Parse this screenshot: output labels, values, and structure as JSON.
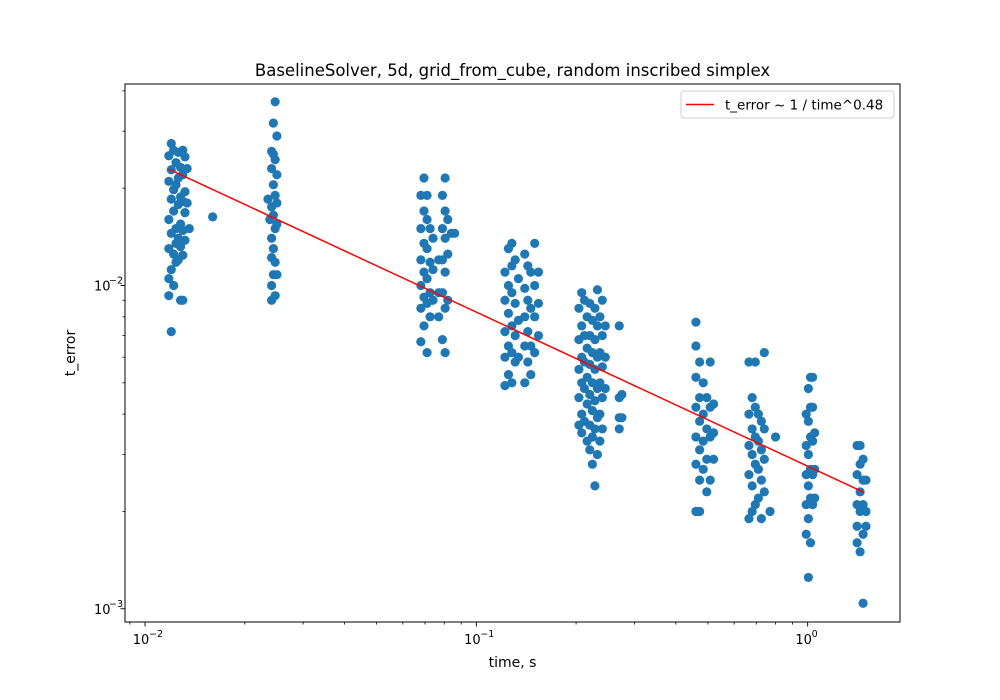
{
  "chart_data": {
    "type": "scatter",
    "title": "BaselineSolver, 5d, grid_from_cube, random inscribed simplex",
    "xlabel": "time, s",
    "ylabel": "t_error",
    "xscale": "log",
    "yscale": "log",
    "xlim": [
      0.0087,
      1.9
    ],
    "ylim": [
      0.00091,
      0.042
    ],
    "grid": false,
    "legend": {
      "placement": "upper right",
      "entries": [
        "t_error ~ 1 / time^0.48"
      ]
    },
    "x_ticks": [
      {
        "value": 0.01,
        "base": "10",
        "exp": "−2"
      },
      {
        "value": 0.1,
        "base": "10",
        "exp": "−1"
      },
      {
        "value": 1,
        "base": "10",
        "exp": "0"
      }
    ],
    "y_ticks": [
      {
        "value": 0.001,
        "base": "10",
        "exp": "−3"
      },
      {
        "value": 0.01,
        "base": "10",
        "exp": "−2"
      }
    ],
    "scatter_color": "#1f77b4",
    "fit_color": "#ff0000",
    "fit": {
      "label": "t_error ~ 1 / time^0.48",
      "x": [
        0.0118,
        1.48
      ],
      "y": [
        0.0229,
        0.00229
      ]
    },
    "points": [
      {
        "x": 0.0118,
        "y": 0.0252
      },
      {
        "x": 0.0118,
        "y": 0.021
      },
      {
        "x": 0.0118,
        "y": 0.016
      },
      {
        "x": 0.0118,
        "y": 0.013
      },
      {
        "x": 0.0118,
        "y": 0.0105
      },
      {
        "x": 0.0118,
        "y": 0.0093
      },
      {
        "x": 0.012,
        "y": 0.0275
      },
      {
        "x": 0.012,
        "y": 0.0228
      },
      {
        "x": 0.012,
        "y": 0.0185
      },
      {
        "x": 0.012,
        "y": 0.0145
      },
      {
        "x": 0.012,
        "y": 0.0112
      },
      {
        "x": 0.012,
        "y": 0.0072
      },
      {
        "x": 0.0122,
        "y": 0.0262
      },
      {
        "x": 0.0122,
        "y": 0.0198
      },
      {
        "x": 0.0122,
        "y": 0.017
      },
      {
        "x": 0.0122,
        "y": 0.0125
      },
      {
        "x": 0.0122,
        "y": 0.01
      },
      {
        "x": 0.0124,
        "y": 0.024
      },
      {
        "x": 0.0124,
        "y": 0.0205
      },
      {
        "x": 0.0124,
        "y": 0.015
      },
      {
        "x": 0.0124,
        "y": 0.0135
      },
      {
        "x": 0.0124,
        "y": 0.0118
      },
      {
        "x": 0.0126,
        "y": 0.0258
      },
      {
        "x": 0.0126,
        "y": 0.0215
      },
      {
        "x": 0.0126,
        "y": 0.0178
      },
      {
        "x": 0.0126,
        "y": 0.014
      },
      {
        "x": 0.0126,
        "y": 0.012
      },
      {
        "x": 0.0128,
        "y": 0.0232
      },
      {
        "x": 0.0128,
        "y": 0.0188
      },
      {
        "x": 0.0128,
        "y": 0.0155
      },
      {
        "x": 0.0128,
        "y": 0.0132
      },
      {
        "x": 0.0128,
        "y": 0.009
      },
      {
        "x": 0.013,
        "y": 0.0262
      },
      {
        "x": 0.013,
        "y": 0.022
      },
      {
        "x": 0.013,
        "y": 0.0182
      },
      {
        "x": 0.013,
        "y": 0.0148
      },
      {
        "x": 0.013,
        "y": 0.0124
      },
      {
        "x": 0.013,
        "y": 0.009
      },
      {
        "x": 0.0132,
        "y": 0.025
      },
      {
        "x": 0.0132,
        "y": 0.0195
      },
      {
        "x": 0.0132,
        "y": 0.0168
      },
      {
        "x": 0.0132,
        "y": 0.0138
      },
      {
        "x": 0.0134,
        "y": 0.023
      },
      {
        "x": 0.0134,
        "y": 0.018
      },
      {
        "x": 0.0136,
        "y": 0.015
      },
      {
        "x": 0.016,
        "y": 0.0163
      },
      {
        "x": 0.0235,
        "y": 0.0185
      },
      {
        "x": 0.0238,
        "y": 0.016
      },
      {
        "x": 0.0241,
        "y": 0.026
      },
      {
        "x": 0.0241,
        "y": 0.023
      },
      {
        "x": 0.0241,
        "y": 0.0175
      },
      {
        "x": 0.0241,
        "y": 0.014
      },
      {
        "x": 0.0241,
        "y": 0.0122
      },
      {
        "x": 0.0241,
        "y": 0.01
      },
      {
        "x": 0.0241,
        "y": 0.009
      },
      {
        "x": 0.0244,
        "y": 0.0318
      },
      {
        "x": 0.0244,
        "y": 0.0255
      },
      {
        "x": 0.0244,
        "y": 0.0205
      },
      {
        "x": 0.0244,
        "y": 0.0165
      },
      {
        "x": 0.0244,
        "y": 0.013
      },
      {
        "x": 0.0244,
        "y": 0.0108
      },
      {
        "x": 0.0247,
        "y": 0.037
      },
      {
        "x": 0.0247,
        "y": 0.0245
      },
      {
        "x": 0.0247,
        "y": 0.019
      },
      {
        "x": 0.0247,
        "y": 0.015
      },
      {
        "x": 0.0247,
        "y": 0.0118
      },
      {
        "x": 0.0247,
        "y": 0.0093
      },
      {
        "x": 0.025,
        "y": 0.029
      },
      {
        "x": 0.025,
        "y": 0.022
      },
      {
        "x": 0.025,
        "y": 0.018
      },
      {
        "x": 0.025,
        "y": 0.0155
      },
      {
        "x": 0.025,
        "y": 0.0108
      },
      {
        "x": 0.068,
        "y": 0.019
      },
      {
        "x": 0.068,
        "y": 0.015
      },
      {
        "x": 0.068,
        "y": 0.012
      },
      {
        "x": 0.068,
        "y": 0.01
      },
      {
        "x": 0.068,
        "y": 0.0085
      },
      {
        "x": 0.068,
        "y": 0.0067
      },
      {
        "x": 0.0695,
        "y": 0.0215
      },
      {
        "x": 0.0695,
        "y": 0.017
      },
      {
        "x": 0.0695,
        "y": 0.0135
      },
      {
        "x": 0.0695,
        "y": 0.011
      },
      {
        "x": 0.0695,
        "y": 0.0092
      },
      {
        "x": 0.0695,
        "y": 0.0075
      },
      {
        "x": 0.071,
        "y": 0.019
      },
      {
        "x": 0.071,
        "y": 0.016
      },
      {
        "x": 0.071,
        "y": 0.013
      },
      {
        "x": 0.071,
        "y": 0.0105
      },
      {
        "x": 0.071,
        "y": 0.0088
      },
      {
        "x": 0.071,
        "y": 0.0062
      },
      {
        "x": 0.0725,
        "y": 0.015
      },
      {
        "x": 0.0725,
        "y": 0.0118
      },
      {
        "x": 0.0725,
        "y": 0.0095
      },
      {
        "x": 0.0725,
        "y": 0.008
      },
      {
        "x": 0.074,
        "y": 0.014
      },
      {
        "x": 0.074,
        "y": 0.0112
      },
      {
        "x": 0.074,
        "y": 0.009
      },
      {
        "x": 0.077,
        "y": 0.012
      },
      {
        "x": 0.077,
        "y": 0.0095
      },
      {
        "x": 0.077,
        "y": 0.008
      },
      {
        "x": 0.079,
        "y": 0.019
      },
      {
        "x": 0.079,
        "y": 0.015
      },
      {
        "x": 0.079,
        "y": 0.012
      },
      {
        "x": 0.079,
        "y": 0.0095
      },
      {
        "x": 0.079,
        "y": 0.0068
      },
      {
        "x": 0.0805,
        "y": 0.0215
      },
      {
        "x": 0.0805,
        "y": 0.017
      },
      {
        "x": 0.0805,
        "y": 0.014
      },
      {
        "x": 0.0805,
        "y": 0.011
      },
      {
        "x": 0.0805,
        "y": 0.0085
      },
      {
        "x": 0.0805,
        "y": 0.0062
      },
      {
        "x": 0.082,
        "y": 0.016
      },
      {
        "x": 0.082,
        "y": 0.0125
      },
      {
        "x": 0.082,
        "y": 0.009
      },
      {
        "x": 0.084,
        "y": 0.0145
      },
      {
        "x": 0.086,
        "y": 0.0145
      },
      {
        "x": 0.122,
        "y": 0.011
      },
      {
        "x": 0.122,
        "y": 0.009
      },
      {
        "x": 0.122,
        "y": 0.0072
      },
      {
        "x": 0.122,
        "y": 0.006
      },
      {
        "x": 0.122,
        "y": 0.0049
      },
      {
        "x": 0.125,
        "y": 0.013
      },
      {
        "x": 0.125,
        "y": 0.01
      },
      {
        "x": 0.125,
        "y": 0.0082
      },
      {
        "x": 0.125,
        "y": 0.0065
      },
      {
        "x": 0.125,
        "y": 0.0053
      },
      {
        "x": 0.128,
        "y": 0.0135
      },
      {
        "x": 0.128,
        "y": 0.0115
      },
      {
        "x": 0.128,
        "y": 0.0095
      },
      {
        "x": 0.128,
        "y": 0.0075
      },
      {
        "x": 0.128,
        "y": 0.0062
      },
      {
        "x": 0.128,
        "y": 0.005
      },
      {
        "x": 0.131,
        "y": 0.012
      },
      {
        "x": 0.131,
        "y": 0.0088
      },
      {
        "x": 0.131,
        "y": 0.007
      },
      {
        "x": 0.131,
        "y": 0.0058
      },
      {
        "x": 0.134,
        "y": 0.0105
      },
      {
        "x": 0.134,
        "y": 0.0078
      },
      {
        "x": 0.134,
        "y": 0.006
      },
      {
        "x": 0.14,
        "y": 0.0125
      },
      {
        "x": 0.14,
        "y": 0.0098
      },
      {
        "x": 0.14,
        "y": 0.008
      },
      {
        "x": 0.14,
        "y": 0.0065
      },
      {
        "x": 0.14,
        "y": 0.005
      },
      {
        "x": 0.143,
        "y": 0.0115
      },
      {
        "x": 0.143,
        "y": 0.009
      },
      {
        "x": 0.143,
        "y": 0.0072
      },
      {
        "x": 0.143,
        "y": 0.0058
      },
      {
        "x": 0.146,
        "y": 0.011
      },
      {
        "x": 0.146,
        "y": 0.0085
      },
      {
        "x": 0.146,
        "y": 0.0065
      },
      {
        "x": 0.146,
        "y": 0.0053
      },
      {
        "x": 0.15,
        "y": 0.0135
      },
      {
        "x": 0.15,
        "y": 0.01
      },
      {
        "x": 0.15,
        "y": 0.008
      },
      {
        "x": 0.15,
        "y": 0.0062
      },
      {
        "x": 0.154,
        "y": 0.011
      },
      {
        "x": 0.154,
        "y": 0.0088
      },
      {
        "x": 0.154,
        "y": 0.007
      },
      {
        "x": 0.204,
        "y": 0.0085
      },
      {
        "x": 0.204,
        "y": 0.0068
      },
      {
        "x": 0.204,
        "y": 0.0055
      },
      {
        "x": 0.204,
        "y": 0.0045
      },
      {
        "x": 0.204,
        "y": 0.0037
      },
      {
        "x": 0.208,
        "y": 0.0095
      },
      {
        "x": 0.208,
        "y": 0.0075
      },
      {
        "x": 0.208,
        "y": 0.006
      },
      {
        "x": 0.208,
        "y": 0.005
      },
      {
        "x": 0.208,
        "y": 0.004
      },
      {
        "x": 0.208,
        "y": 0.0035
      },
      {
        "x": 0.212,
        "y": 0.009
      },
      {
        "x": 0.212,
        "y": 0.007
      },
      {
        "x": 0.212,
        "y": 0.0058
      },
      {
        "x": 0.212,
        "y": 0.0048
      },
      {
        "x": 0.212,
        "y": 0.0038
      },
      {
        "x": 0.216,
        "y": 0.008
      },
      {
        "x": 0.216,
        "y": 0.0064
      },
      {
        "x": 0.216,
        "y": 0.0052
      },
      {
        "x": 0.216,
        "y": 0.0043
      },
      {
        "x": 0.216,
        "y": 0.0033
      },
      {
        "x": 0.22,
        "y": 0.0088
      },
      {
        "x": 0.22,
        "y": 0.007
      },
      {
        "x": 0.22,
        "y": 0.0057
      },
      {
        "x": 0.22,
        "y": 0.0046
      },
      {
        "x": 0.22,
        "y": 0.0037
      },
      {
        "x": 0.22,
        "y": 0.0031
      },
      {
        "x": 0.224,
        "y": 0.0078
      },
      {
        "x": 0.224,
        "y": 0.0062
      },
      {
        "x": 0.224,
        "y": 0.005
      },
      {
        "x": 0.224,
        "y": 0.0041
      },
      {
        "x": 0.224,
        "y": 0.0034
      },
      {
        "x": 0.224,
        "y": 0.0028
      },
      {
        "x": 0.228,
        "y": 0.0085
      },
      {
        "x": 0.228,
        "y": 0.0068
      },
      {
        "x": 0.228,
        "y": 0.0055
      },
      {
        "x": 0.228,
        "y": 0.0044
      },
      {
        "x": 0.228,
        "y": 0.0036
      },
      {
        "x": 0.228,
        "y": 0.0024
      },
      {
        "x": 0.232,
        "y": 0.0097
      },
      {
        "x": 0.232,
        "y": 0.0075
      },
      {
        "x": 0.232,
        "y": 0.006
      },
      {
        "x": 0.232,
        "y": 0.0048
      },
      {
        "x": 0.232,
        "y": 0.0039
      },
      {
        "x": 0.232,
        "y": 0.003
      },
      {
        "x": 0.236,
        "y": 0.008
      },
      {
        "x": 0.236,
        "y": 0.0062
      },
      {
        "x": 0.236,
        "y": 0.005
      },
      {
        "x": 0.236,
        "y": 0.004
      },
      {
        "x": 0.236,
        "y": 0.0033
      },
      {
        "x": 0.24,
        "y": 0.009
      },
      {
        "x": 0.24,
        "y": 0.007
      },
      {
        "x": 0.24,
        "y": 0.0056
      },
      {
        "x": 0.24,
        "y": 0.0045
      },
      {
        "x": 0.24,
        "y": 0.0036
      },
      {
        "x": 0.245,
        "y": 0.0075
      },
      {
        "x": 0.245,
        "y": 0.006
      },
      {
        "x": 0.245,
        "y": 0.0048
      },
      {
        "x": 0.27,
        "y": 0.0075
      },
      {
        "x": 0.27,
        "y": 0.0045
      },
      {
        "x": 0.27,
        "y": 0.0039
      },
      {
        "x": 0.27,
        "y": 0.0036
      },
      {
        "x": 0.275,
        "y": 0.0039
      },
      {
        "x": 0.275,
        "y": 0.0046
      },
      {
        "x": 0.46,
        "y": 0.0077
      },
      {
        "x": 0.46,
        "y": 0.0065
      },
      {
        "x": 0.46,
        "y": 0.0052
      },
      {
        "x": 0.46,
        "y": 0.0042
      },
      {
        "x": 0.46,
        "y": 0.0034
      },
      {
        "x": 0.46,
        "y": 0.0028
      },
      {
        "x": 0.46,
        "y": 0.002
      },
      {
        "x": 0.472,
        "y": 0.0058
      },
      {
        "x": 0.472,
        "y": 0.0045
      },
      {
        "x": 0.472,
        "y": 0.0038
      },
      {
        "x": 0.472,
        "y": 0.0031
      },
      {
        "x": 0.472,
        "y": 0.0025
      },
      {
        "x": 0.472,
        "y": 0.002
      },
      {
        "x": 0.484,
        "y": 0.005
      },
      {
        "x": 0.484,
        "y": 0.004
      },
      {
        "x": 0.484,
        "y": 0.0033
      },
      {
        "x": 0.484,
        "y": 0.0027
      },
      {
        "x": 0.496,
        "y": 0.0045
      },
      {
        "x": 0.496,
        "y": 0.0036
      },
      {
        "x": 0.496,
        "y": 0.0029
      },
      {
        "x": 0.496,
        "y": 0.0023
      },
      {
        "x": 0.508,
        "y": 0.0058
      },
      {
        "x": 0.508,
        "y": 0.0042
      },
      {
        "x": 0.508,
        "y": 0.0034
      },
      {
        "x": 0.508,
        "y": 0.0025
      },
      {
        "x": 0.52,
        "y": 0.0043
      },
      {
        "x": 0.52,
        "y": 0.0035
      },
      {
        "x": 0.52,
        "y": 0.0029
      },
      {
        "x": 0.665,
        "y": 0.0058
      },
      {
        "x": 0.665,
        "y": 0.004
      },
      {
        "x": 0.665,
        "y": 0.0032
      },
      {
        "x": 0.665,
        "y": 0.0026
      },
      {
        "x": 0.665,
        "y": 0.0019
      },
      {
        "x": 0.68,
        "y": 0.0045
      },
      {
        "x": 0.68,
        "y": 0.0036
      },
      {
        "x": 0.68,
        "y": 0.003
      },
      {
        "x": 0.68,
        "y": 0.0024
      },
      {
        "x": 0.68,
        "y": 0.002
      },
      {
        "x": 0.695,
        "y": 0.0058
      },
      {
        "x": 0.695,
        "y": 0.0042
      },
      {
        "x": 0.695,
        "y": 0.0034
      },
      {
        "x": 0.695,
        "y": 0.0028
      },
      {
        "x": 0.695,
        "y": 0.0021
      },
      {
        "x": 0.71,
        "y": 0.004
      },
      {
        "x": 0.71,
        "y": 0.0033
      },
      {
        "x": 0.71,
        "y": 0.0027
      },
      {
        "x": 0.71,
        "y": 0.0022
      },
      {
        "x": 0.725,
        "y": 0.0038
      },
      {
        "x": 0.725,
        "y": 0.0031
      },
      {
        "x": 0.725,
        "y": 0.0025
      },
      {
        "x": 0.725,
        "y": 0.0019
      },
      {
        "x": 0.74,
        "y": 0.0062
      },
      {
        "x": 0.74,
        "y": 0.0036
      },
      {
        "x": 0.74,
        "y": 0.0029
      },
      {
        "x": 0.74,
        "y": 0.0023
      },
      {
        "x": 0.77,
        "y": 0.002
      },
      {
        "x": 0.8,
        "y": 0.0034
      },
      {
        "x": 0.99,
        "y": 0.004
      },
      {
        "x": 0.99,
        "y": 0.0032
      },
      {
        "x": 0.99,
        "y": 0.0026
      },
      {
        "x": 0.99,
        "y": 0.0021
      },
      {
        "x": 0.99,
        "y": 0.0017
      },
      {
        "x": 1.005,
        "y": 0.0048
      },
      {
        "x": 1.005,
        "y": 0.0038
      },
      {
        "x": 1.005,
        "y": 0.003
      },
      {
        "x": 1.005,
        "y": 0.0024
      },
      {
        "x": 1.005,
        "y": 0.0019
      },
      {
        "x": 1.005,
        "y": 0.00125
      },
      {
        "x": 1.02,
        "y": 0.0052
      },
      {
        "x": 1.02,
        "y": 0.0042
      },
      {
        "x": 1.02,
        "y": 0.0034
      },
      {
        "x": 1.02,
        "y": 0.0027
      },
      {
        "x": 1.02,
        "y": 0.0022
      },
      {
        "x": 1.02,
        "y": 0.0016
      },
      {
        "x": 1.035,
        "y": 0.0052
      },
      {
        "x": 1.035,
        "y": 0.0042
      },
      {
        "x": 1.035,
        "y": 0.0033
      },
      {
        "x": 1.035,
        "y": 0.0026
      },
      {
        "x": 1.035,
        "y": 0.0021
      },
      {
        "x": 1.05,
        "y": 0.0035
      },
      {
        "x": 1.05,
        "y": 0.0027
      },
      {
        "x": 1.05,
        "y": 0.0022
      },
      {
        "x": 1.41,
        "y": 0.0032
      },
      {
        "x": 1.41,
        "y": 0.0026
      },
      {
        "x": 1.41,
        "y": 0.0021
      },
      {
        "x": 1.41,
        "y": 0.0018
      },
      {
        "x": 1.41,
        "y": 0.0016
      },
      {
        "x": 1.44,
        "y": 0.0032
      },
      {
        "x": 1.44,
        "y": 0.0028
      },
      {
        "x": 1.44,
        "y": 0.0023
      },
      {
        "x": 1.44,
        "y": 0.002
      },
      {
        "x": 1.44,
        "y": 0.0015
      },
      {
        "x": 1.47,
        "y": 0.0029
      },
      {
        "x": 1.47,
        "y": 0.0025
      },
      {
        "x": 1.47,
        "y": 0.0021
      },
      {
        "x": 1.47,
        "y": 0.0017
      },
      {
        "x": 1.47,
        "y": 0.00104
      },
      {
        "x": 1.5,
        "y": 0.0025
      },
      {
        "x": 1.5,
        "y": 0.002
      },
      {
        "x": 1.5,
        "y": 0.0018
      }
    ]
  }
}
